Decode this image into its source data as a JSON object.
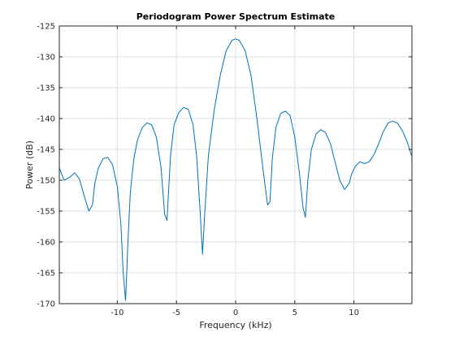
{
  "chart_data": {
    "type": "line",
    "title": "Periodogram Power Spectrum Estimate",
    "xlabel": "Frequency (kHz)",
    "ylabel": "Power (dB)",
    "xlim": [
      -14.9,
      14.9
    ],
    "ylim": [
      -170,
      -125
    ],
    "xticks": [
      -10,
      -5,
      0,
      5,
      10
    ],
    "yticks": [
      -125,
      -130,
      -135,
      -140,
      -145,
      -150,
      -155,
      -160,
      -165,
      -170
    ],
    "grid": true,
    "line_color": "#0072BD",
    "series": [
      {
        "x": [
          -14.9,
          -14.5,
          -14.0,
          -13.6,
          -13.2,
          -12.8,
          -12.4,
          -12.1,
          -11.9,
          -11.6,
          -11.2,
          -10.8,
          -10.4,
          -10.0,
          -9.7,
          -9.5,
          -9.3,
          -9.1,
          -8.9,
          -8.6,
          -8.3,
          -7.9,
          -7.5,
          -7.1,
          -6.7,
          -6.3,
          -6.0,
          -5.8,
          -5.5,
          -5.2,
          -4.8,
          -4.4,
          -4.0,
          -3.6,
          -3.3,
          -3.0,
          -2.8,
          -2.6,
          -2.3,
          -1.8,
          -1.3,
          -0.8,
          -0.3,
          0.0,
          0.3,
          0.8,
          1.3,
          1.8,
          2.3,
          2.7,
          2.9,
          3.1,
          3.4,
          3.8,
          4.2,
          4.6,
          5.0,
          5.4,
          5.7,
          5.9,
          6.1,
          6.4,
          6.8,
          7.2,
          7.6,
          8.0,
          8.4,
          8.8,
          9.2,
          9.6,
          9.8,
          10.1,
          10.5,
          10.9,
          11.3,
          11.7,
          12.1,
          12.5,
          12.9,
          13.3,
          13.7,
          14.1,
          14.5,
          14.9
        ],
        "y": [
          -148.0,
          -150.0,
          -149.5,
          -148.8,
          -149.8,
          -152.5,
          -155.0,
          -154.0,
          -150.5,
          -148.0,
          -146.5,
          -146.3,
          -147.5,
          -151.0,
          -157.0,
          -165.0,
          -169.5,
          -160.0,
          -152.0,
          -146.5,
          -143.5,
          -141.5,
          -140.7,
          -141.0,
          -143.0,
          -148.0,
          -155.5,
          -156.5,
          -146.0,
          -141.0,
          -139.0,
          -138.2,
          -138.5,
          -141.0,
          -146.0,
          -155.0,
          -162.0,
          -155.0,
          -146.0,
          -138.5,
          -133.0,
          -129.0,
          -127.3,
          -127.1,
          -127.3,
          -129.0,
          -133.0,
          -140.0,
          -148.0,
          -154.0,
          -153.5,
          -146.5,
          -141.5,
          -139.2,
          -138.8,
          -139.5,
          -143.0,
          -149.0,
          -154.5,
          -156.0,
          -150.0,
          -145.0,
          -142.5,
          -141.8,
          -142.3,
          -144.0,
          -147.0,
          -150.0,
          -151.5,
          -150.5,
          -149.0,
          -147.8,
          -147.0,
          -147.3,
          -147.0,
          -145.8,
          -144.0,
          -142.0,
          -140.7,
          -140.4,
          -140.8,
          -142.0,
          -143.8,
          -146.2
        ]
      }
    ]
  }
}
